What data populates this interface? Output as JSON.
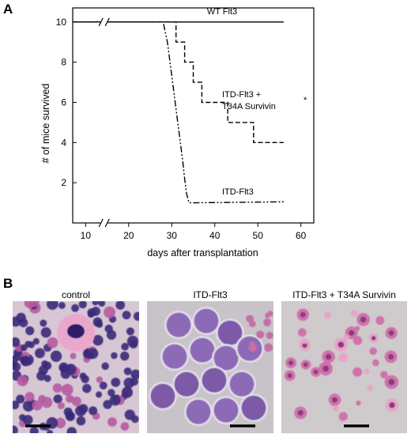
{
  "panels": {
    "a_label": "A",
    "b_label": "B"
  },
  "chart_data": {
    "type": "line",
    "title": "",
    "xlabel": "days after transplantation",
    "ylabel": "# of mice survived",
    "x_ticks": [
      "10",
      "20",
      "30",
      "40",
      "50",
      "60"
    ],
    "y_ticks": [
      "2",
      "4",
      "6",
      "8",
      "10"
    ],
    "xlim": [
      7,
      63
    ],
    "ylim": [
      0,
      10.7
    ],
    "axis_break": "x",
    "grid": false,
    "series": [
      {
        "name": "WT Flt3",
        "style": "solid",
        "x": [
          7,
          56
        ],
        "y": [
          10,
          10
        ]
      },
      {
        "name": "ITD-Flt3 + T34A Survivin",
        "annotation": "*",
        "style": "dashed",
        "x": [
          7,
          31,
          31,
          33,
          33,
          35,
          35,
          37,
          37,
          43,
          43,
          49,
          49,
          56
        ],
        "y": [
          10,
          10,
          9,
          9,
          8,
          8,
          7,
          7,
          6,
          6,
          5,
          5,
          4,
          4
        ]
      },
      {
        "name": "ITD-Flt3",
        "style": "dash-dot-dot",
        "x": [
          7,
          28,
          29,
          29.6,
          30.2,
          30.8,
          31.4,
          32,
          32.6,
          33,
          33.4,
          34,
          56
        ],
        "y": [
          10,
          10,
          9,
          8,
          7,
          6,
          5,
          4,
          3,
          2.2,
          1.5,
          1,
          1.05
        ]
      }
    ]
  },
  "micrographs": [
    {
      "title": "control",
      "bg": "#d7c7d4"
    },
    {
      "title": "ITD-Flt3",
      "bg": "#c8c3c9"
    },
    {
      "title": "ITD-Flt3 + T34A Survivin",
      "bg": "#cfcacb"
    }
  ]
}
